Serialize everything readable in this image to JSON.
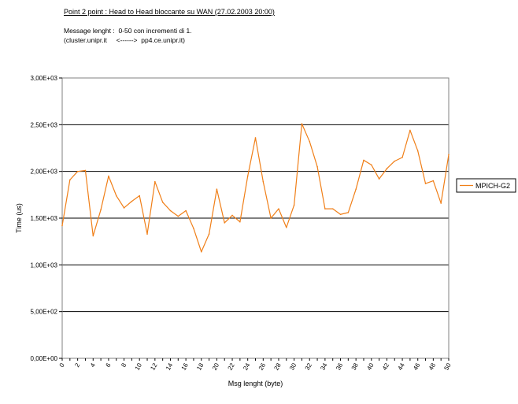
{
  "header": {
    "title": "Point 2 point : Head to Head bloccante su WAN (27.02.2003 20:00)",
    "line1": "Message lenght :  0-50 con incrementi di 1.",
    "line2": "(cluster.unipr.it     <------>  pp4.ce.unipr.it)"
  },
  "colors": {
    "series": "#f07f18",
    "grid": "#000000",
    "plot_bg": "#ffffff"
  },
  "chart_data": {
    "type": "line",
    "xlabel": "Msg lenght (byte)",
    "ylabel": "Time (us)",
    "ylim": [
      0,
      3000
    ],
    "yticks": [
      0,
      500,
      1000,
      1500,
      2000,
      2500,
      3000
    ],
    "ytick_labels": [
      "0,00E+00",
      "5,00E+02",
      "1,00E+03",
      "1,50E+03",
      "2,00E+03",
      "2,50E+03",
      "3,00E+03"
    ],
    "grid": true,
    "legend_position": "right",
    "x": [
      0,
      1,
      2,
      3,
      4,
      5,
      6,
      7,
      8,
      9,
      10,
      11,
      12,
      13,
      14,
      15,
      16,
      17,
      18,
      19,
      20,
      21,
      22,
      23,
      24,
      25,
      26,
      27,
      28,
      29,
      30,
      31,
      32,
      33,
      34,
      35,
      36,
      37,
      38,
      39,
      40,
      41,
      42,
      43,
      44,
      45,
      46,
      47,
      48,
      49,
      50
    ],
    "xtick_labels": [
      "0",
      "2",
      "4",
      "6",
      "8",
      "10",
      "12",
      "14",
      "16",
      "18",
      "20",
      "22",
      "24",
      "26",
      "28",
      "30",
      "32",
      "34",
      "36",
      "38",
      "40",
      "42",
      "44",
      "46",
      "48",
      "50"
    ],
    "series": [
      {
        "name": "MPICH-G2",
        "values": [
          1420,
          1910,
          2000,
          2010,
          1310,
          1590,
          1950,
          1740,
          1610,
          1680,
          1740,
          1330,
          1890,
          1670,
          1580,
          1520,
          1580,
          1390,
          1140,
          1330,
          1810,
          1450,
          1530,
          1460,
          1950,
          2360,
          1890,
          1500,
          1600,
          1400,
          1640,
          2510,
          2320,
          2050,
          1600,
          1600,
          1540,
          1560,
          1810,
          2120,
          2070,
          1920,
          2030,
          2110,
          2150,
          2440,
          2220,
          1870,
          1900,
          1660,
          2180
        ]
      }
    ]
  }
}
